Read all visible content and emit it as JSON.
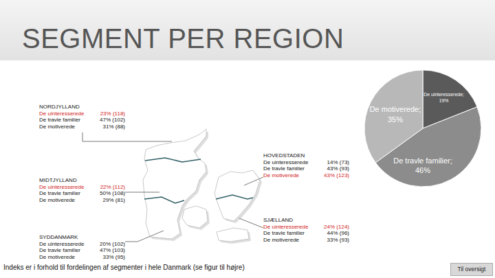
{
  "title": "SEGMENT PER REGION",
  "regions": [
    {
      "name": "NORDJYLLAND",
      "rows": [
        {
          "segment": "De uinteresserede",
          "value": "23% (118)",
          "highlight": true
        },
        {
          "segment": "De travle familier",
          "value": "47% (102)",
          "highlight": false
        },
        {
          "segment": "De motiverede",
          "value": "31% (88)",
          "highlight": false
        }
      ]
    },
    {
      "name": "MIDTJYLLAND",
      "rows": [
        {
          "segment": "De uinteresserede",
          "value": "22% (112)",
          "highlight": true
        },
        {
          "segment": "De travle familier",
          "value": "50% (108)",
          "highlight": false
        },
        {
          "segment": "De motiverede",
          "value": "29% (81)",
          "highlight": false
        }
      ]
    },
    {
      "name": "SYDDANMARK",
      "rows": [
        {
          "segment": "De uinteresserede",
          "value": "20% (102)",
          "highlight": false
        },
        {
          "segment": "De travle familier",
          "value": "47% (103)",
          "highlight": false
        },
        {
          "segment": "De motiverede",
          "value": "33% (95)",
          "highlight": false
        }
      ]
    },
    {
      "name": "HOVEDSTADEN",
      "rows": [
        {
          "segment": "De uinteresserede",
          "value": "14% (73)",
          "highlight": false
        },
        {
          "segment": "De travle familier",
          "value": "43% (93)",
          "highlight": false
        },
        {
          "segment": "De motiverede",
          "value": "43% (123)",
          "highlight": true
        }
      ]
    },
    {
      "name": "SJÆLLAND",
      "rows": [
        {
          "segment": "De uinteresserede",
          "value": "24% (124)",
          "highlight": true
        },
        {
          "segment": "De travle familier",
          "value": "44% (96)",
          "highlight": false
        },
        {
          "segment": "De motiverede",
          "value": "33% (93)",
          "highlight": false
        }
      ]
    }
  ],
  "chart_data": {
    "type": "pie",
    "categories": [
      "De uinteresserede",
      "De travle familier",
      "De motiverede"
    ],
    "values": [
      19,
      46,
      35
    ],
    "value_labels": [
      "De uinteresserede; 19%",
      "De travle familier; 46%",
      "De motiverede; 35%"
    ],
    "colors": [
      "#5a5a5a",
      "#8c8c8c",
      "#b8b8b8"
    ],
    "data_labels": true
  },
  "footnote": "Indeks er i forhold til fordelingen af segmenter i hele Danmark (se figur til højre)",
  "button": "Til oversigt"
}
